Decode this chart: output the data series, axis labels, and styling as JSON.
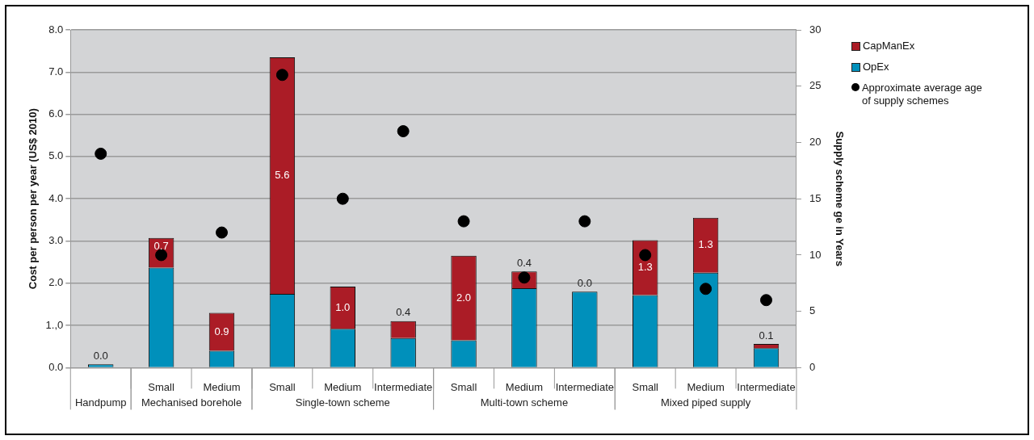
{
  "chart_data": {
    "type": "bar",
    "stacked": true,
    "categories": [
      null,
      "Small",
      "Medium",
      "Small",
      "Medium",
      "Intermediate",
      "Small",
      "Medium",
      "Intermediate",
      "Small",
      "Medium",
      "Intermediate"
    ],
    "series": [
      {
        "name": "OpEx",
        "color": "#0090bb",
        "values": [
          0.08,
          2.37,
          0.4,
          1.75,
          0.92,
          0.7,
          0.65,
          1.88,
          1.8,
          1.72,
          2.25,
          0.46
        ]
      },
      {
        "name": "CapManEx",
        "color": "#ab1c26",
        "values": [
          0.0,
          0.7,
          0.9,
          5.6,
          1.0,
          0.4,
          2.0,
          0.4,
          0.0,
          1.3,
          1.3,
          0.1
        ],
        "value_labels": [
          "0.0",
          "0.7",
          "0.9",
          "5.6",
          "1.0",
          "0.4",
          "2.0",
          "0.4",
          "0.0",
          "1.3",
          "1.3",
          "0.1"
        ]
      },
      {
        "name": "Approximate average age of supply schemes",
        "type": "scatter",
        "axis": "y2",
        "color": "#000000",
        "marker": "circle",
        "values": [
          19,
          10,
          12,
          26,
          15,
          21,
          13,
          8,
          13,
          10,
          7,
          6
        ]
      }
    ],
    "ylabel": "Cost per person per year (US$ 2010)",
    "y2label": "Supply scheme ge in Years",
    "ylim": [
      0,
      8
    ],
    "yticks": [
      {
        "value": 0,
        "label": "0.0"
      },
      {
        "value": 1,
        "label": "1.,0"
      },
      {
        "value": 2,
        "label": "2.0"
      },
      {
        "value": 3,
        "label": "3.0"
      },
      {
        "value": 4,
        "label": "4.0"
      },
      {
        "value": 5,
        "label": "5.0"
      },
      {
        "value": 6,
        "label": "6.0"
      },
      {
        "value": 7,
        "label": "7.0"
      },
      {
        "value": 8,
        "label": "8.0"
      }
    ],
    "y2lim": [
      0,
      30
    ],
    "y2ticks": [
      0,
      5,
      10,
      15,
      20,
      25,
      30
    ],
    "annotations": [
      "Handpump",
      "Mechanised borehole",
      "Single-town scheme",
      "Multi-town scheme",
      "Mixed piped supply"
    ],
    "grid": "y",
    "legend": "top right"
  }
}
